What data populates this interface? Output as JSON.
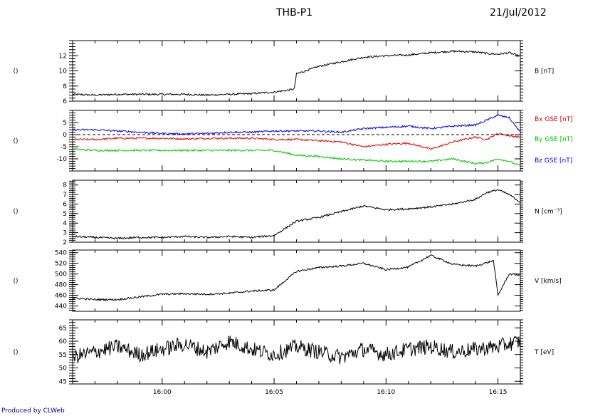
{
  "header": {
    "title": "THB-P1",
    "date": "21/Jul/2012"
  },
  "footer": {
    "credit": "Produced by CLWeb"
  },
  "chart_data": {
    "type": "line",
    "x_unit": "HH:MM UT on 21/Jul/2012",
    "xlim": [
      "15:56",
      "16:16"
    ],
    "x_ticks": [
      "16:00",
      "16:05",
      "16:10",
      "16:15"
    ],
    "panels": [
      {
        "y_label": "B [nT]",
        "left_label": "()",
        "ylim": [
          6,
          14
        ],
        "y_ticks": [
          6,
          8,
          10,
          12
        ],
        "series": [
          {
            "name": "B [nT]",
            "color": "#000000",
            "x": [
              "15:56",
              "15:57",
              "15:58",
              "15:59",
              "16:00",
              "16:01",
              "16:02",
              "16:03",
              "16:04",
              "16:05",
              "16:05.5",
              "16:05.9",
              "16:06",
              "16:07",
              "16:08",
              "16:09",
              "16:10",
              "16:11",
              "16:12",
              "16:13",
              "16:14",
              "16:14.5",
              "16:15",
              "16:15.5",
              "16:16"
            ],
            "y": [
              6.9,
              6.8,
              6.9,
              6.9,
              6.9,
              6.9,
              6.8,
              6.9,
              7.0,
              7.2,
              7.4,
              7.6,
              9.6,
              10.6,
              11.2,
              11.8,
              12.0,
              12.1,
              12.4,
              12.6,
              12.5,
              12.3,
              12.2,
              12.4,
              11.9
            ]
          }
        ]
      },
      {
        "y_label": null,
        "left_label": "()",
        "ylim": [
          -15,
          10
        ],
        "y_ticks": [
          -10,
          -5,
          0,
          5
        ],
        "zero_line": true,
        "series": [
          {
            "name": "Bx GSE [nT]",
            "color": "#e00000",
            "x": [
              "15:56",
              "15:57",
              "15:58",
              "15:59",
              "16:00",
              "16:01",
              "16:02",
              "16:03",
              "16:04",
              "16:05",
              "16:06",
              "16:07",
              "16:08",
              "16:09",
              "16:10",
              "16:11",
              "16:12",
              "16:13",
              "16:14",
              "16:14.5",
              "16:15",
              "16:15.5",
              "16:16"
            ],
            "y": [
              -2.0,
              -2.0,
              -1.5,
              -1.5,
              -1.5,
              -1.8,
              -1.5,
              -1.5,
              -1.5,
              -2.0,
              -2.0,
              -2.5,
              -3.0,
              -5.0,
              -4.0,
              -3.5,
              -6.0,
              -3.0,
              -1.0,
              -2.0,
              0.5,
              -0.5,
              -1.0
            ]
          },
          {
            "name": "By GSE [nT]",
            "color": "#00c800",
            "x": [
              "15:56",
              "15:57",
              "15:58",
              "15:59",
              "16:00",
              "16:01",
              "16:02",
              "16:03",
              "16:04",
              "16:05",
              "16:06",
              "16:07",
              "16:08",
              "16:09",
              "16:10",
              "16:11",
              "16:12",
              "16:13",
              "16:14",
              "16:14.5",
              "16:15",
              "16:15.5",
              "16:16"
            ],
            "y": [
              -6.0,
              -6.5,
              -6.5,
              -6.5,
              -6.5,
              -6.5,
              -6.5,
              -6.5,
              -6.5,
              -6.5,
              -8.5,
              -9.0,
              -10.0,
              -10.5,
              -11.0,
              -11.0,
              -11.0,
              -10.0,
              -12.0,
              -11.5,
              -10.0,
              -11.0,
              -13.0
            ]
          },
          {
            "name": "Bz GSE [nT]",
            "color": "#0000dc",
            "x": [
              "15:56",
              "15:57",
              "15:58",
              "15:59",
              "16:00",
              "16:01",
              "16:02",
              "16:03",
              "16:04",
              "16:05",
              "16:06",
              "16:07",
              "16:08",
              "16:09",
              "16:10",
              "16:11",
              "16:12",
              "16:13",
              "16:14",
              "16:14.5",
              "16:15",
              "16:15.5",
              "16:16"
            ],
            "y": [
              2.0,
              2.0,
              1.5,
              1.0,
              0.5,
              0.3,
              0.5,
              1.0,
              1.0,
              1.5,
              1.5,
              1.5,
              1.0,
              2.5,
              3.0,
              3.5,
              2.5,
              3.5,
              4.0,
              6.0,
              8.0,
              7.0,
              1.0
            ]
          }
        ]
      },
      {
        "y_label": "N [cm^-3]",
        "left_label": "()",
        "ylim": [
          2,
          8.5
        ],
        "y_ticks": [
          2,
          3,
          4,
          5,
          6,
          7,
          8
        ],
        "series": [
          {
            "name": "N [cm^-3]",
            "color": "#000000",
            "x": [
              "15:56",
              "15:57",
              "15:58",
              "15:59",
              "16:00",
              "16:01",
              "16:02",
              "16:03",
              "16:04",
              "16:05",
              "16:06",
              "16:07",
              "16:08",
              "16:09",
              "16:10",
              "16:11",
              "16:12",
              "16:13",
              "16:14",
              "16:14.5",
              "16:15",
              "16:15.5",
              "16:16"
            ],
            "y": [
              2.6,
              2.5,
              2.4,
              2.5,
              2.5,
              2.6,
              2.5,
              2.6,
              2.5,
              2.7,
              4.2,
              4.6,
              5.2,
              5.8,
              5.4,
              5.5,
              5.7,
              6.0,
              6.5,
              7.2,
              7.5,
              7.0,
              6.2
            ]
          }
        ]
      },
      {
        "y_label": "V [km/s]",
        "left_label": "()",
        "ylim": [
          430,
          545
        ],
        "y_ticks": [
          440,
          460,
          480,
          500,
          520,
          540
        ],
        "series": [
          {
            "name": "V [km/s]",
            "color": "#000000",
            "x": [
              "15:56",
              "15:57",
              "15:58",
              "15:59",
              "16:00",
              "16:01",
              "16:02",
              "16:03",
              "16:04",
              "16:05",
              "16:06",
              "16:07",
              "16:08",
              "16:09",
              "16:10",
              "16:11",
              "16:12",
              "16:13",
              "16:14",
              "16:14.8",
              "16:15",
              "16:15.5",
              "16:16"
            ],
            "y": [
              455,
              452,
              452,
              457,
              462,
              463,
              462,
              464,
              468,
              470,
              505,
              512,
              515,
              520,
              508,
              513,
              535,
              518,
              515,
              525,
              460,
              500,
              498
            ]
          }
        ]
      },
      {
        "y_label": "T [eV]",
        "left_label": "()",
        "ylim": [
          44,
          68
        ],
        "y_ticks": [
          45,
          50,
          55,
          60,
          65
        ],
        "series": [
          {
            "name": "T [eV]",
            "color": "#000000",
            "x": [
              "15:56",
              "15:57",
              "15:58",
              "15:59",
              "16:00",
              "16:01",
              "16:02",
              "16:03",
              "16:04",
              "16:05",
              "16:06",
              "16:07",
              "16:08",
              "16:09",
              "16:10",
              "16:11",
              "16:12",
              "16:13",
              "16:14",
              "16:15",
              "16:16"
            ],
            "y": [
              54,
              56,
              58,
              55,
              57,
              59,
              56,
              60,
              57,
              55,
              58,
              56,
              54,
              57,
              55,
              57,
              58,
              56,
              57,
              58,
              60
            ]
          }
        ]
      }
    ]
  }
}
